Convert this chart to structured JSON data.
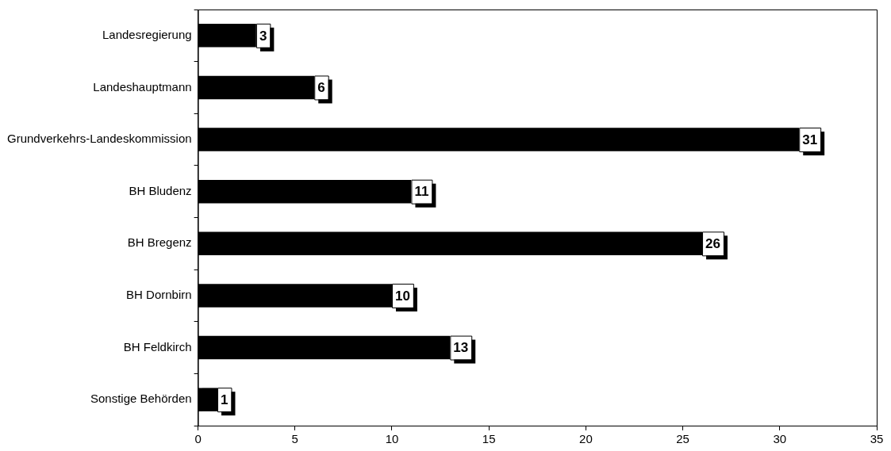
{
  "chart_data": {
    "type": "bar",
    "orientation": "horizontal",
    "categories": [
      "Landesregierung",
      "Landeshauptmann",
      "Grundverkehrs-Landeskommission",
      "BH Bludenz",
      "BH Bregenz",
      "BH Dornbirn",
      "BH Feldkirch",
      "Sonstige Behörden"
    ],
    "values": [
      3,
      6,
      31,
      11,
      26,
      10,
      13,
      1
    ],
    "color": "#000000",
    "xlim": [
      0,
      35
    ],
    "xticks": [
      0,
      5,
      10,
      15,
      20,
      25,
      30,
      35
    ],
    "grid": false,
    "legend": false,
    "data_labels": true
  }
}
